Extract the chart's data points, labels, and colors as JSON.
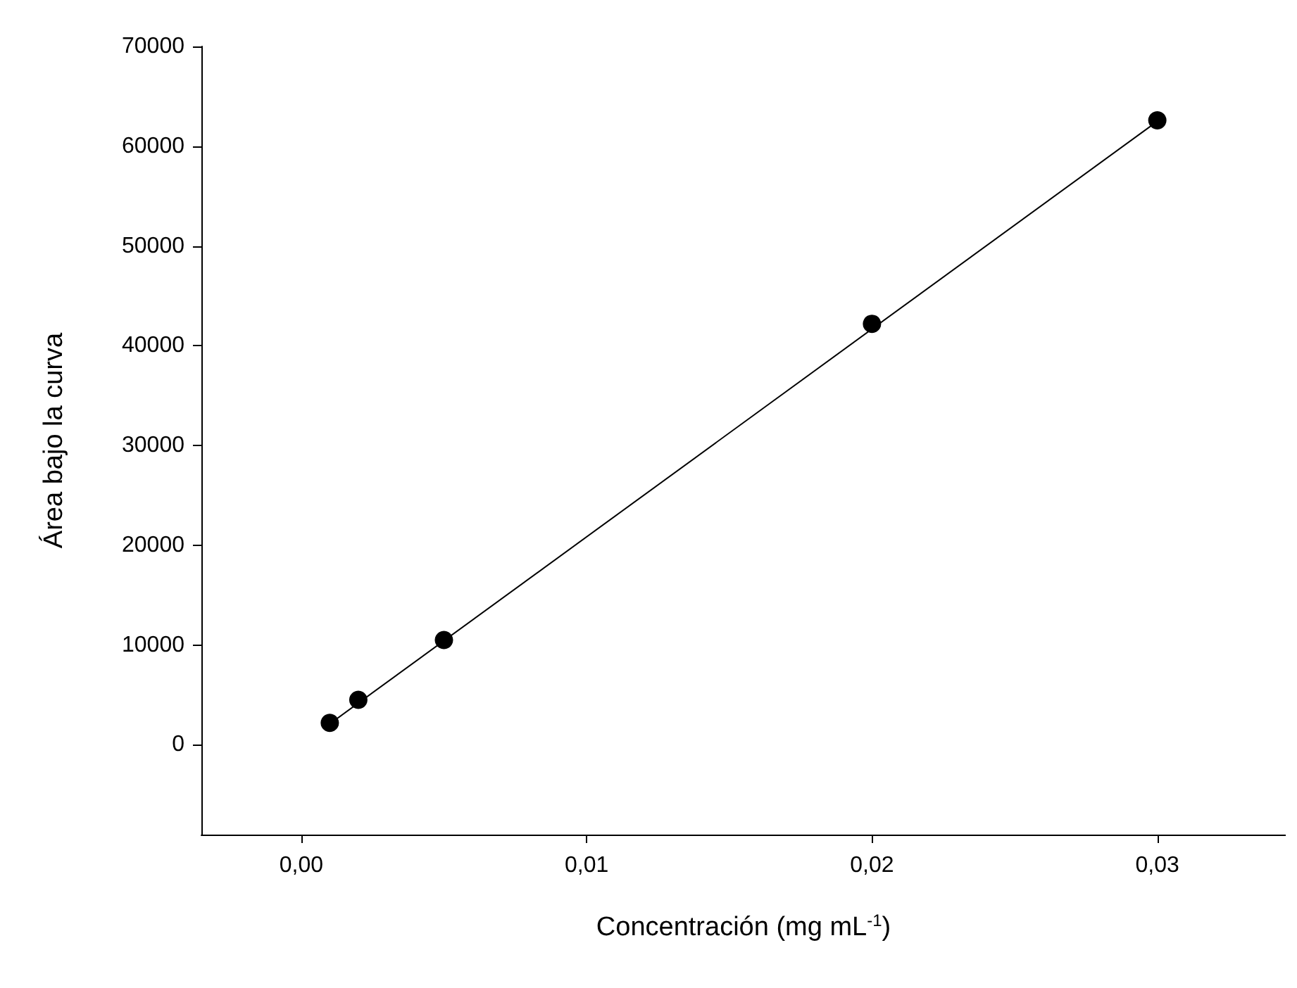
{
  "chart_data": {
    "type": "scatter",
    "xlabel": "Concentración (mg mL$^{-1}$)",
    "ylabel": "Área bajo la curva",
    "xlim": [
      -0.0035,
      0.0345
    ],
    "ylim": [
      -9000,
      70000
    ],
    "xticks": [
      {
        "value": 0,
        "label": "0,00"
      },
      {
        "value": 0.01,
        "label": "0,01"
      },
      {
        "value": 0.02,
        "label": "0,02"
      },
      {
        "value": 0.03,
        "label": "0,03"
      }
    ],
    "yticks": [
      0,
      10000,
      20000,
      30000,
      40000,
      50000,
      60000,
      70000
    ],
    "grid": false,
    "series": [
      {
        "color": "#000000",
        "marker": "circle",
        "x": [
          0.001,
          0.002,
          0.005,
          0.02,
          0.03
        ],
        "values": [
          2200,
          4500,
          10500,
          42200,
          62600
        ]
      },
      {
        "type": "line",
        "color": "#000000",
        "line_style": "solid",
        "x": [
          0.001,
          0.03
        ],
        "values": [
          2100,
          62500
        ]
      }
    ]
  }
}
